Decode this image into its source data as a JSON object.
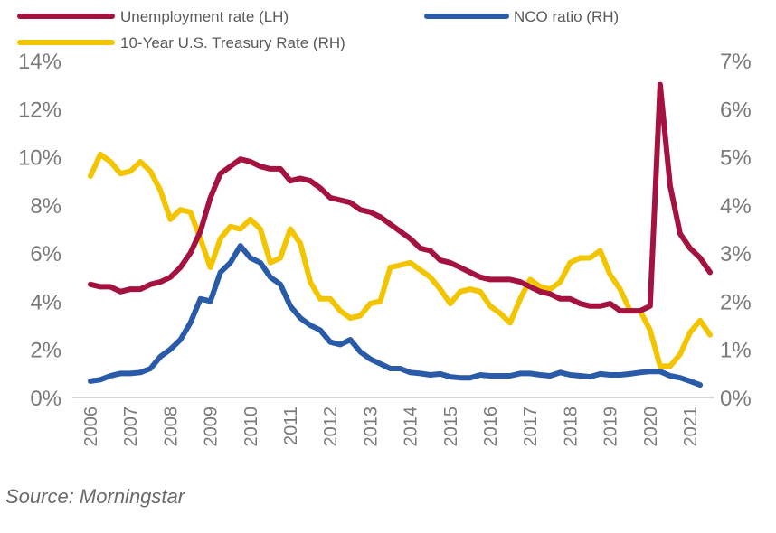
{
  "chart_data": {
    "type": "line",
    "title": "",
    "source": "Source: Morningstar",
    "x_start": 2006,
    "x_step": 0.25,
    "x_tick_labels": [
      "2006",
      "2007",
      "2008",
      "2009",
      "2010",
      "2011",
      "2012",
      "2013",
      "2014",
      "2015",
      "2016",
      "2017",
      "2018",
      "2019",
      "2020",
      "2021"
    ],
    "left_axis": {
      "ylim": [
        0,
        14
      ],
      "tick_labels": [
        "0%",
        "2%",
        "4%",
        "6%",
        "8%",
        "10%",
        "12%",
        "14%"
      ]
    },
    "right_axis": {
      "ylim": [
        0,
        7
      ],
      "tick_labels": [
        "0%",
        "1%",
        "2%",
        "3%",
        "4%",
        "5%",
        "6%",
        "7%"
      ]
    },
    "grid": false,
    "legend_position": "top",
    "series": [
      {
        "name": "Unemployment rate (LH)",
        "axis": "left",
        "color": "#A4123F",
        "values": [
          4.7,
          4.6,
          4.6,
          4.4,
          4.5,
          4.5,
          4.7,
          4.8,
          5.0,
          5.4,
          6.0,
          6.9,
          8.3,
          9.3,
          9.6,
          9.9,
          9.8,
          9.6,
          9.5,
          9.5,
          9.0,
          9.1,
          9.0,
          8.7,
          8.3,
          8.2,
          8.1,
          7.8,
          7.7,
          7.5,
          7.2,
          6.9,
          6.6,
          6.2,
          6.1,
          5.7,
          5.6,
          5.4,
          5.2,
          5.0,
          4.9,
          4.9,
          4.9,
          4.8,
          4.6,
          4.4,
          4.3,
          4.1,
          4.1,
          3.9,
          3.8,
          3.8,
          3.9,
          3.6,
          3.6,
          3.6,
          3.8,
          13.0,
          8.8,
          6.8,
          6.2,
          5.8,
          5.2
        ]
      },
      {
        "name": "NCO ratio (RH)",
        "axis": "right",
        "color": "#2A5BA8",
        "values": [
          0.34,
          0.37,
          0.45,
          0.5,
          0.5,
          0.52,
          0.6,
          0.85,
          1.0,
          1.2,
          1.55,
          2.05,
          2.0,
          2.6,
          2.8,
          3.15,
          2.9,
          2.8,
          2.5,
          2.35,
          1.9,
          1.65,
          1.5,
          1.4,
          1.15,
          1.1,
          1.2,
          0.95,
          0.8,
          0.7,
          0.6,
          0.6,
          0.52,
          0.5,
          0.47,
          0.49,
          0.43,
          0.41,
          0.41,
          0.47,
          0.45,
          0.45,
          0.45,
          0.5,
          0.5,
          0.47,
          0.45,
          0.52,
          0.47,
          0.45,
          0.43,
          0.49,
          0.47,
          0.47,
          0.49,
          0.52,
          0.54,
          0.54,
          0.45,
          0.41,
          0.34,
          0.26
        ]
      },
      {
        "name": "10-Year U.S. Treasury Rate (RH)",
        "axis": "right",
        "color": "#F2C500",
        "values": [
          4.6,
          5.05,
          4.9,
          4.65,
          4.7,
          4.9,
          4.7,
          4.3,
          3.7,
          3.9,
          3.85,
          3.3,
          2.7,
          3.3,
          3.55,
          3.5,
          3.7,
          3.5,
          2.8,
          2.9,
          3.5,
          3.2,
          2.4,
          2.05,
          2.05,
          1.8,
          1.65,
          1.7,
          1.95,
          2.0,
          2.7,
          2.75,
          2.8,
          2.65,
          2.5,
          2.25,
          1.95,
          2.2,
          2.25,
          2.2,
          1.9,
          1.75,
          1.55,
          2.05,
          2.45,
          2.3,
          2.25,
          2.4,
          2.8,
          2.9,
          2.9,
          3.05,
          2.55,
          2.25,
          1.8,
          1.8,
          1.4,
          0.65,
          0.65,
          0.9,
          1.35,
          1.6,
          1.3
        ]
      }
    ]
  }
}
